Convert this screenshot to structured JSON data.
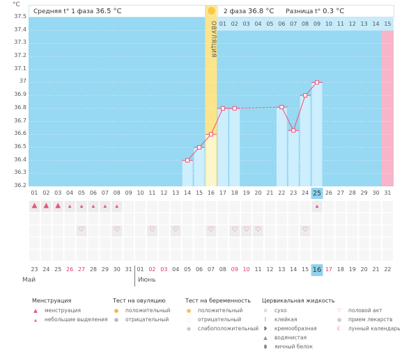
{
  "header": {
    "unit": "°C",
    "phase1": "Средняя t° 1 фаза",
    "phase1_value": "36.5 °C",
    "phase2": "2 фаза",
    "phase2_value": "36.8 °C",
    "diff": "Разница t°",
    "diff_value": "0.3 °C",
    "ovulation_label": "ОВУЛЯЦИЯ"
  },
  "phase2_days": [
    "01",
    "02",
    "03",
    "04",
    "05",
    "06",
    "07",
    "08",
    "09",
    "10",
    "11",
    "12",
    "13",
    "14",
    "15"
  ],
  "colors": {
    "sky": "#97d8f2",
    "bar": "#cdeefc",
    "ovulation": "#fbe48a",
    "ovulation_bar": "#fdf6cc",
    "pink": "#f8b4c8",
    "line": "#f0507a",
    "today": "#8fd3ef"
  },
  "chart_data": {
    "type": "line",
    "title": "",
    "xlabel": "",
    "ylabel": "°C",
    "ylim": [
      36.2,
      37.5
    ],
    "y_ticks": [
      "37.5",
      "37.4",
      "37.3",
      "37.2",
      "37.1",
      "37",
      "36.9",
      "36.8",
      "36.7",
      "36.6",
      "36.5",
      "36.4",
      "36.3",
      "36.2"
    ],
    "cycle_days": [
      "01",
      "02",
      "03",
      "04",
      "05",
      "06",
      "07",
      "08",
      "09",
      "10",
      "11",
      "12",
      "13",
      "14",
      "15",
      "16",
      "17",
      "18",
      "19",
      "20",
      "21",
      "22",
      "23",
      "24",
      "25",
      "26",
      "27",
      "28",
      "29",
      "30",
      "31"
    ],
    "series": [
      {
        "name": "temperature",
        "points": [
          [
            14,
            36.4
          ],
          [
            15,
            36.5
          ],
          [
            16,
            36.6
          ],
          [
            17,
            36.8
          ],
          [
            18,
            36.8
          ],
          [
            22,
            36.81
          ],
          [
            23,
            36.63
          ],
          [
            24,
            36.9
          ],
          [
            25,
            37.0
          ]
        ]
      }
    ],
    "ovulation_day": 16,
    "today_day": 25,
    "pink_day": 31
  },
  "menstruation": {
    "heavy": [
      1,
      2,
      3
    ],
    "light": [
      4,
      5,
      6,
      7,
      8,
      25
    ]
  },
  "intercourse_days": [
    5,
    8,
    11,
    13,
    16,
    18,
    19,
    20,
    24
  ],
  "dates": [
    "23",
    "24",
    "25",
    "26",
    "27",
    "28",
    "29",
    "30",
    "31",
    "01",
    "02",
    "03",
    "04",
    "05",
    "06",
    "07",
    "08",
    "09",
    "10",
    "11",
    "12",
    "13",
    "14",
    "15",
    "16",
    "17",
    "18",
    "19",
    "20",
    "21",
    "22"
  ],
  "red_dates": [
    3,
    4,
    10,
    11,
    17,
    18,
    25
  ],
  "months": [
    "Май",
    "Июнь"
  ],
  "legend": {
    "menstruation": {
      "title": "Менструация",
      "items": [
        "менструация",
        "небольшие выделения"
      ]
    },
    "ovulation_test": {
      "title": "Тест на овуляцию",
      "items": [
        "положительный",
        "отрицательный"
      ]
    },
    "pregnancy_test": {
      "title": "Тест на беременность",
      "items": [
        "положительный",
        "отрицательный",
        "слабоположительный"
      ]
    },
    "cervical": {
      "title": "Цервикальная жидкость",
      "items": [
        "сухо",
        "клейкая",
        "кремообразная",
        "водянистая",
        "яичный белок"
      ]
    },
    "other": {
      "items": [
        "половой акт",
        "прием лекарств",
        "лунный календарь"
      ]
    }
  }
}
